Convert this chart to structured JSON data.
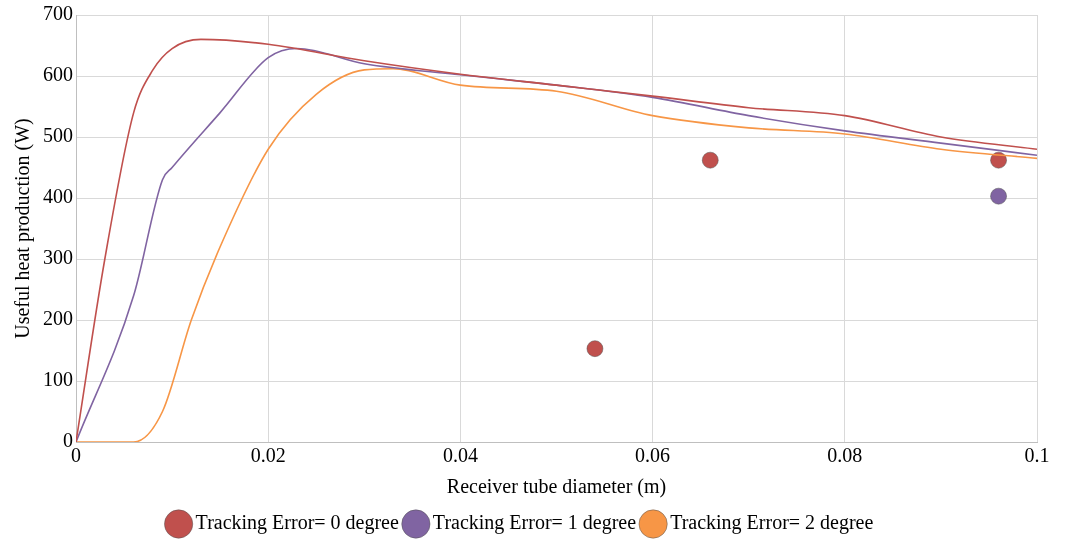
{
  "chart_data": {
    "type": "line",
    "xlabel": "Receiver tube diameter (m)",
    "ylabel": "Useful heat production (W)",
    "xlim": [
      0,
      0.1
    ],
    "xticks": [
      0,
      0.02,
      0.04,
      0.06,
      0.08,
      0.1
    ],
    "ylim": [
      0,
      700
    ],
    "yticks": [
      0,
      100,
      200,
      300,
      400,
      500,
      600,
      700
    ],
    "grid": true,
    "legend": "bottom",
    "marker": "none",
    "series": [
      {
        "name": "Tracking Error= 0 degree",
        "color": "#c0504d",
        "x": [
          0,
          0.003,
          0.006,
          0.008,
          0.01,
          0.013,
          0.02,
          0.03,
          0.04,
          0.05,
          0.06,
          0.07,
          0.08,
          0.09,
          0.1
        ],
        "values": [
          0,
          300,
          540,
          610,
          645,
          660,
          652,
          625,
          603,
          585,
          567,
          548,
          535,
          500,
          480
        ]
      },
      {
        "name": "Tracking Error= 1 degree",
        "color": "#8064a2",
        "x": [
          0,
          0.006,
          0.009,
          0.01,
          0.015,
          0.02,
          0.023,
          0.03,
          0.04,
          0.05,
          0.06,
          0.07,
          0.08,
          0.09,
          0.1
        ],
        "values": [
          0,
          240,
          430,
          450,
          540,
          630,
          645,
          620,
          602,
          585,
          565,
          535,
          510,
          490,
          470
        ]
      },
      {
        "name": "Tracking Error= 2 degree",
        "color": "#f79646",
        "x": [
          0,
          0.006,
          0.009,
          0.012,
          0.015,
          0.02,
          0.025,
          0.03,
          0.033,
          0.04,
          0.05,
          0.06,
          0.07,
          0.08,
          0.09,
          0.1
        ],
        "values": [
          0,
          0,
          50,
          200,
          320,
          480,
          570,
          610,
          612,
          585,
          575,
          535,
          515,
          505,
          480,
          465
        ]
      },
      {
        "type": "scatter",
        "marker": "circle",
        "color": "#c0504d",
        "x": [
          0.054,
          0.066,
          0.096
        ],
        "values": [
          153,
          462,
          462
        ]
      },
      {
        "type": "scatter",
        "marker": "circle",
        "color": "#8064a2",
        "x": [
          0.096
        ],
        "values": [
          403
        ]
      }
    ]
  }
}
